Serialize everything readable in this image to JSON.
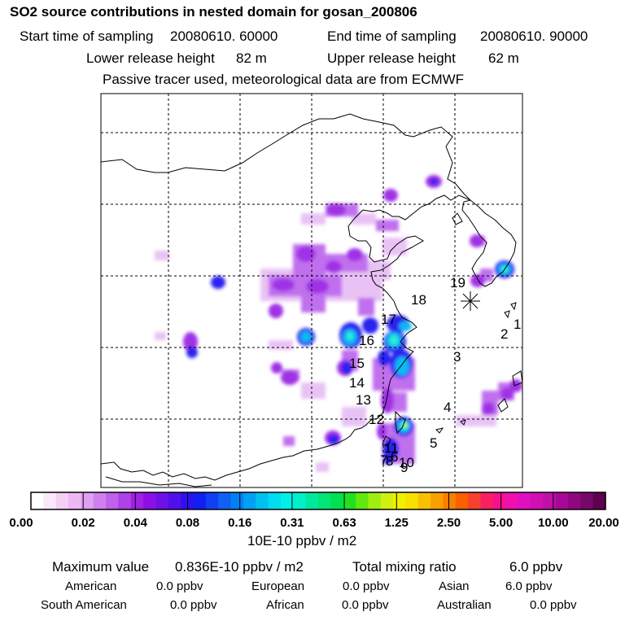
{
  "title": "SO2 source contributions in nested domain for gosan_200806",
  "header": {
    "start_label": "Start time of sampling",
    "start_value": "20080610. 60000",
    "end_label": "End time of sampling",
    "end_value": "20080610. 90000",
    "lower_label": "Lower release height",
    "lower_value": "82 m",
    "upper_label": "Upper release height",
    "upper_value": "62 m",
    "note": "Passive tracer used, meteorological data are from ECMWF"
  },
  "map": {
    "receptor_marker": "asterisk-icon",
    "region_labels": [
      "1",
      "2",
      "3",
      "4",
      "5",
      "6",
      "7",
      "8",
      "9",
      "10",
      "11",
      "12",
      "13",
      "14",
      "15",
      "16",
      "17",
      "18",
      "19"
    ]
  },
  "colorbar": {
    "unit": "10E-10 ppbv / m2",
    "tick_labels": [
      "0.00",
      "0.02",
      "0.04",
      "0.08",
      "0.16",
      "0.31",
      "0.63",
      "1.25",
      "2.50",
      "5.00",
      "10.00",
      "20.00"
    ],
    "colors": [
      "#ffffff",
      "#fbe8fb",
      "#f5d0f5",
      "#eeb8f2",
      "#e0a0f0",
      "#d080ee",
      "#c060ec",
      "#b040e8",
      "#a020e6",
      "#8c10e6",
      "#6e10e8",
      "#5010ec",
      "#3010f0",
      "#1020f2",
      "#1040f4",
      "#1060f4",
      "#0080f4",
      "#00a0f4",
      "#00c0f2",
      "#00dcf0",
      "#00f0e8",
      "#00f0c8",
      "#00e8a0",
      "#00e478",
      "#00e050",
      "#20e020",
      "#60e810",
      "#a0ee10",
      "#d0f010",
      "#f0f000",
      "#f8e000",
      "#f8c000",
      "#f8a000",
      "#f88000",
      "#f86000",
      "#f84030",
      "#f82060",
      "#f81090",
      "#f010b0",
      "#e010c0",
      "#d010b0",
      "#c010a8",
      "#a80898",
      "#900880",
      "#780868",
      "#600050"
    ]
  },
  "stats": {
    "max_label": "Maximum value",
    "max_value": "0.836E-10 ppbv / m2",
    "total_label": "Total mixing ratio",
    "total_value": "6.0 ppbv",
    "american_label": "American",
    "american_value": "0.0 ppbv",
    "european_label": "European",
    "european_value": "0.0 ppbv",
    "asian_label": "Asian",
    "asian_value": "6.0 ppbv",
    "south_american_label": "South American",
    "south_american_value": "0.0 ppbv",
    "african_label": "African",
    "african_value": "0.0 ppbv",
    "australian_label": "Australian",
    "australian_value": "0.0 ppbv"
  }
}
